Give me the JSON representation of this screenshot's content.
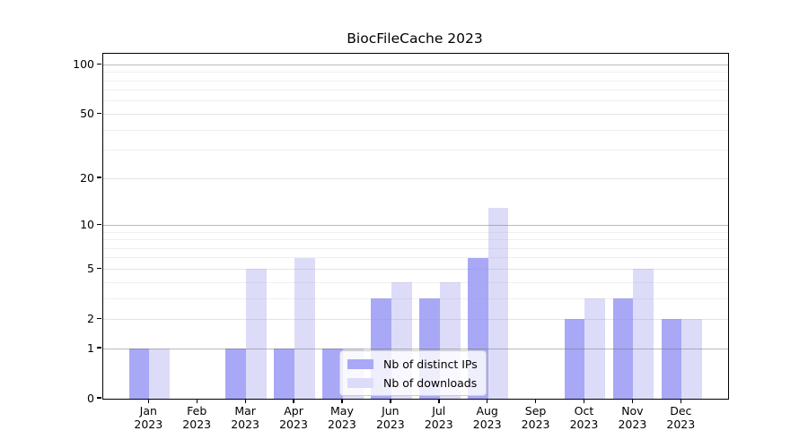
{
  "chart_data": {
    "type": "bar",
    "title": "BiocFileCache 2023",
    "categories": [
      "Jan",
      "Feb",
      "Mar",
      "Apr",
      "May",
      "Jun",
      "Jul",
      "Aug",
      "Sep",
      "Oct",
      "Nov",
      "Dec"
    ],
    "category_sublabel": "2023",
    "series": [
      {
        "name": "Nb of distinct IPs",
        "color": "#a8a8f6",
        "values": [
          1,
          0,
          1,
          1,
          1,
          3,
          3,
          6,
          0,
          2,
          3,
          2
        ]
      },
      {
        "name": "Nb of downloads",
        "color": "#dcdcf8",
        "values": [
          1,
          0,
          5,
          6,
          1,
          4,
          4,
          13,
          0,
          3,
          5,
          2
        ]
      }
    ],
    "y_axis": {
      "scale": "log10(value+1)",
      "ylim": [
        0,
        116
      ],
      "tick_values": [
        0,
        1,
        2,
        5,
        10,
        20,
        50,
        100
      ],
      "gridlines": {
        "decade": [
          1,
          10,
          100
        ],
        "major": [
          2,
          5,
          20,
          50
        ],
        "minor": [
          3,
          4,
          6,
          7,
          8,
          9,
          30,
          40,
          60,
          70,
          80,
          90
        ]
      }
    },
    "legend": {
      "position": "lower-center",
      "entries": [
        "Nb of distinct IPs",
        "Nb of downloads"
      ]
    },
    "grid": true
  },
  "colors": {
    "bar_distinct_ips": "#a8a8f6",
    "bar_downloads": "#dcdcf8",
    "decade_gridline": "#c7c7c7",
    "major_gridline": "#e7e7e7",
    "minor_gridline": "#f0f0f0",
    "axis": "#000000",
    "legend_border": "#cccccc",
    "background": "#ffffff"
  }
}
